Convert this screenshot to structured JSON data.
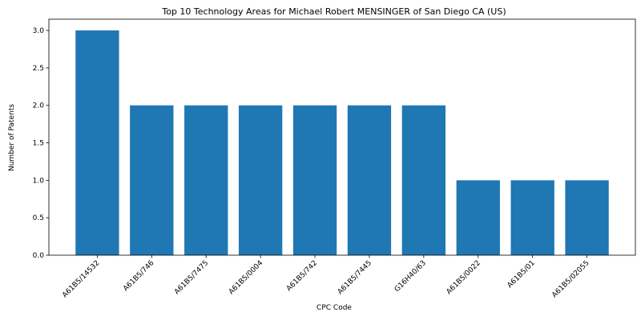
{
  "chart_data": {
    "type": "bar",
    "title": "Top 10 Technology Areas for Michael Robert MENSINGER of San Diego CA (US)",
    "xlabel": "CPC Code",
    "ylabel": "Number of Patents",
    "categories": [
      "A61B5/14532",
      "A61B5/746",
      "A61B5/7475",
      "A61B5/0004",
      "A61B5/742",
      "A61B5/7445",
      "G16H40/63",
      "A61B5/0022",
      "A61B5/01",
      "A61B5/02055"
    ],
    "values": [
      3,
      2,
      2,
      2,
      2,
      2,
      2,
      1,
      1,
      1
    ],
    "ylim": [
      0,
      3.15
    ],
    "yticks": [
      "0.0",
      "0.5",
      "1.0",
      "1.5",
      "2.0",
      "2.5",
      "3.0"
    ],
    "grid": false,
    "colors": {
      "bar": "#1f77b4",
      "axis": "#000000",
      "background": "#ffffff"
    }
  }
}
